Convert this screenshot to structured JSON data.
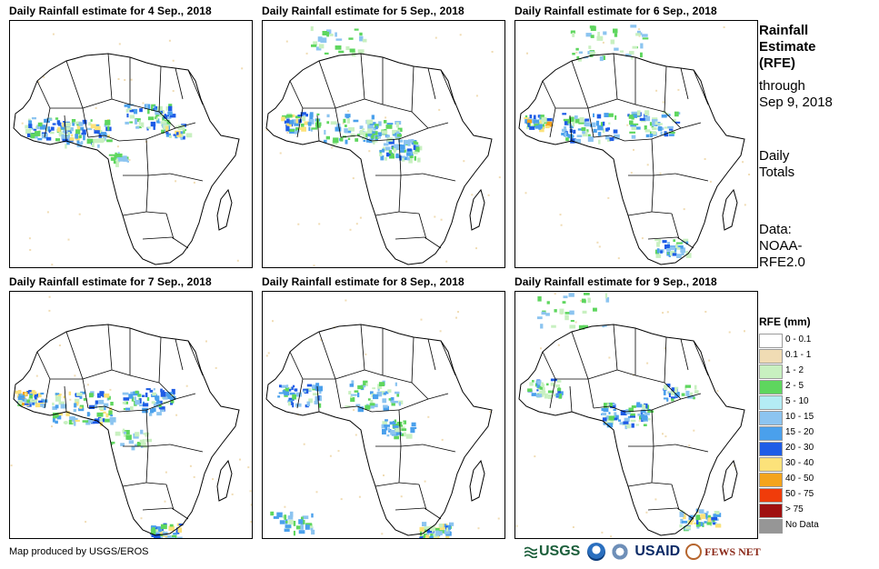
{
  "panels": [
    {
      "title": "Daily Rainfall estimate for 4 Sep., 2018"
    },
    {
      "title": "Daily Rainfall estimate for 5 Sep., 2018"
    },
    {
      "title": "Daily Rainfall estimate for 6 Sep., 2018"
    },
    {
      "title": "Daily Rainfall estimate for 7 Sep., 2018"
    },
    {
      "title": "Daily Rainfall estimate for 8 Sep., 2018"
    },
    {
      "title": "Daily Rainfall estimate for 9 Sep., 2018"
    }
  ],
  "sidebar": {
    "title_line1": "Rainfall",
    "title_line2": "Estimate",
    "title_line3": "(RFE)",
    "through_line1": "through",
    "through_line2": "Sep 9, 2018",
    "totals_line1": "Daily",
    "totals_line2": "Totals",
    "data_line1": "Data:",
    "data_line2": "NOAA-",
    "data_line3": "RFE2.0"
  },
  "legend": {
    "title": "RFE (mm)",
    "items": [
      {
        "label": "0 - 0.1",
        "color": "#ffffff"
      },
      {
        "label": "0.1 - 1",
        "color": "#f0dcb4"
      },
      {
        "label": "1 - 2",
        "color": "#c8f0c0"
      },
      {
        "label": "2 - 5",
        "color": "#5ed65e"
      },
      {
        "label": "5 - 10",
        "color": "#b4ecf4"
      },
      {
        "label": "10 - 15",
        "color": "#8cc4f0"
      },
      {
        "label": "15 - 20",
        "color": "#4aa0ec"
      },
      {
        "label": "20 - 30",
        "color": "#1e5ce6"
      },
      {
        "label": "30 - 40",
        "color": "#fce27a"
      },
      {
        "label": "40 - 50",
        "color": "#f4a41c"
      },
      {
        "label": "50 - 75",
        "color": "#f03c0a"
      },
      {
        "label": "> 75",
        "color": "#a01010"
      },
      {
        "label": "No Data",
        "color": "#969696"
      }
    ]
  },
  "footer": {
    "credit": "Map produced by USGS/EROS",
    "logos": {
      "usgs": "USGS",
      "usaid": "USAID",
      "fews": "FEWS NET"
    }
  }
}
